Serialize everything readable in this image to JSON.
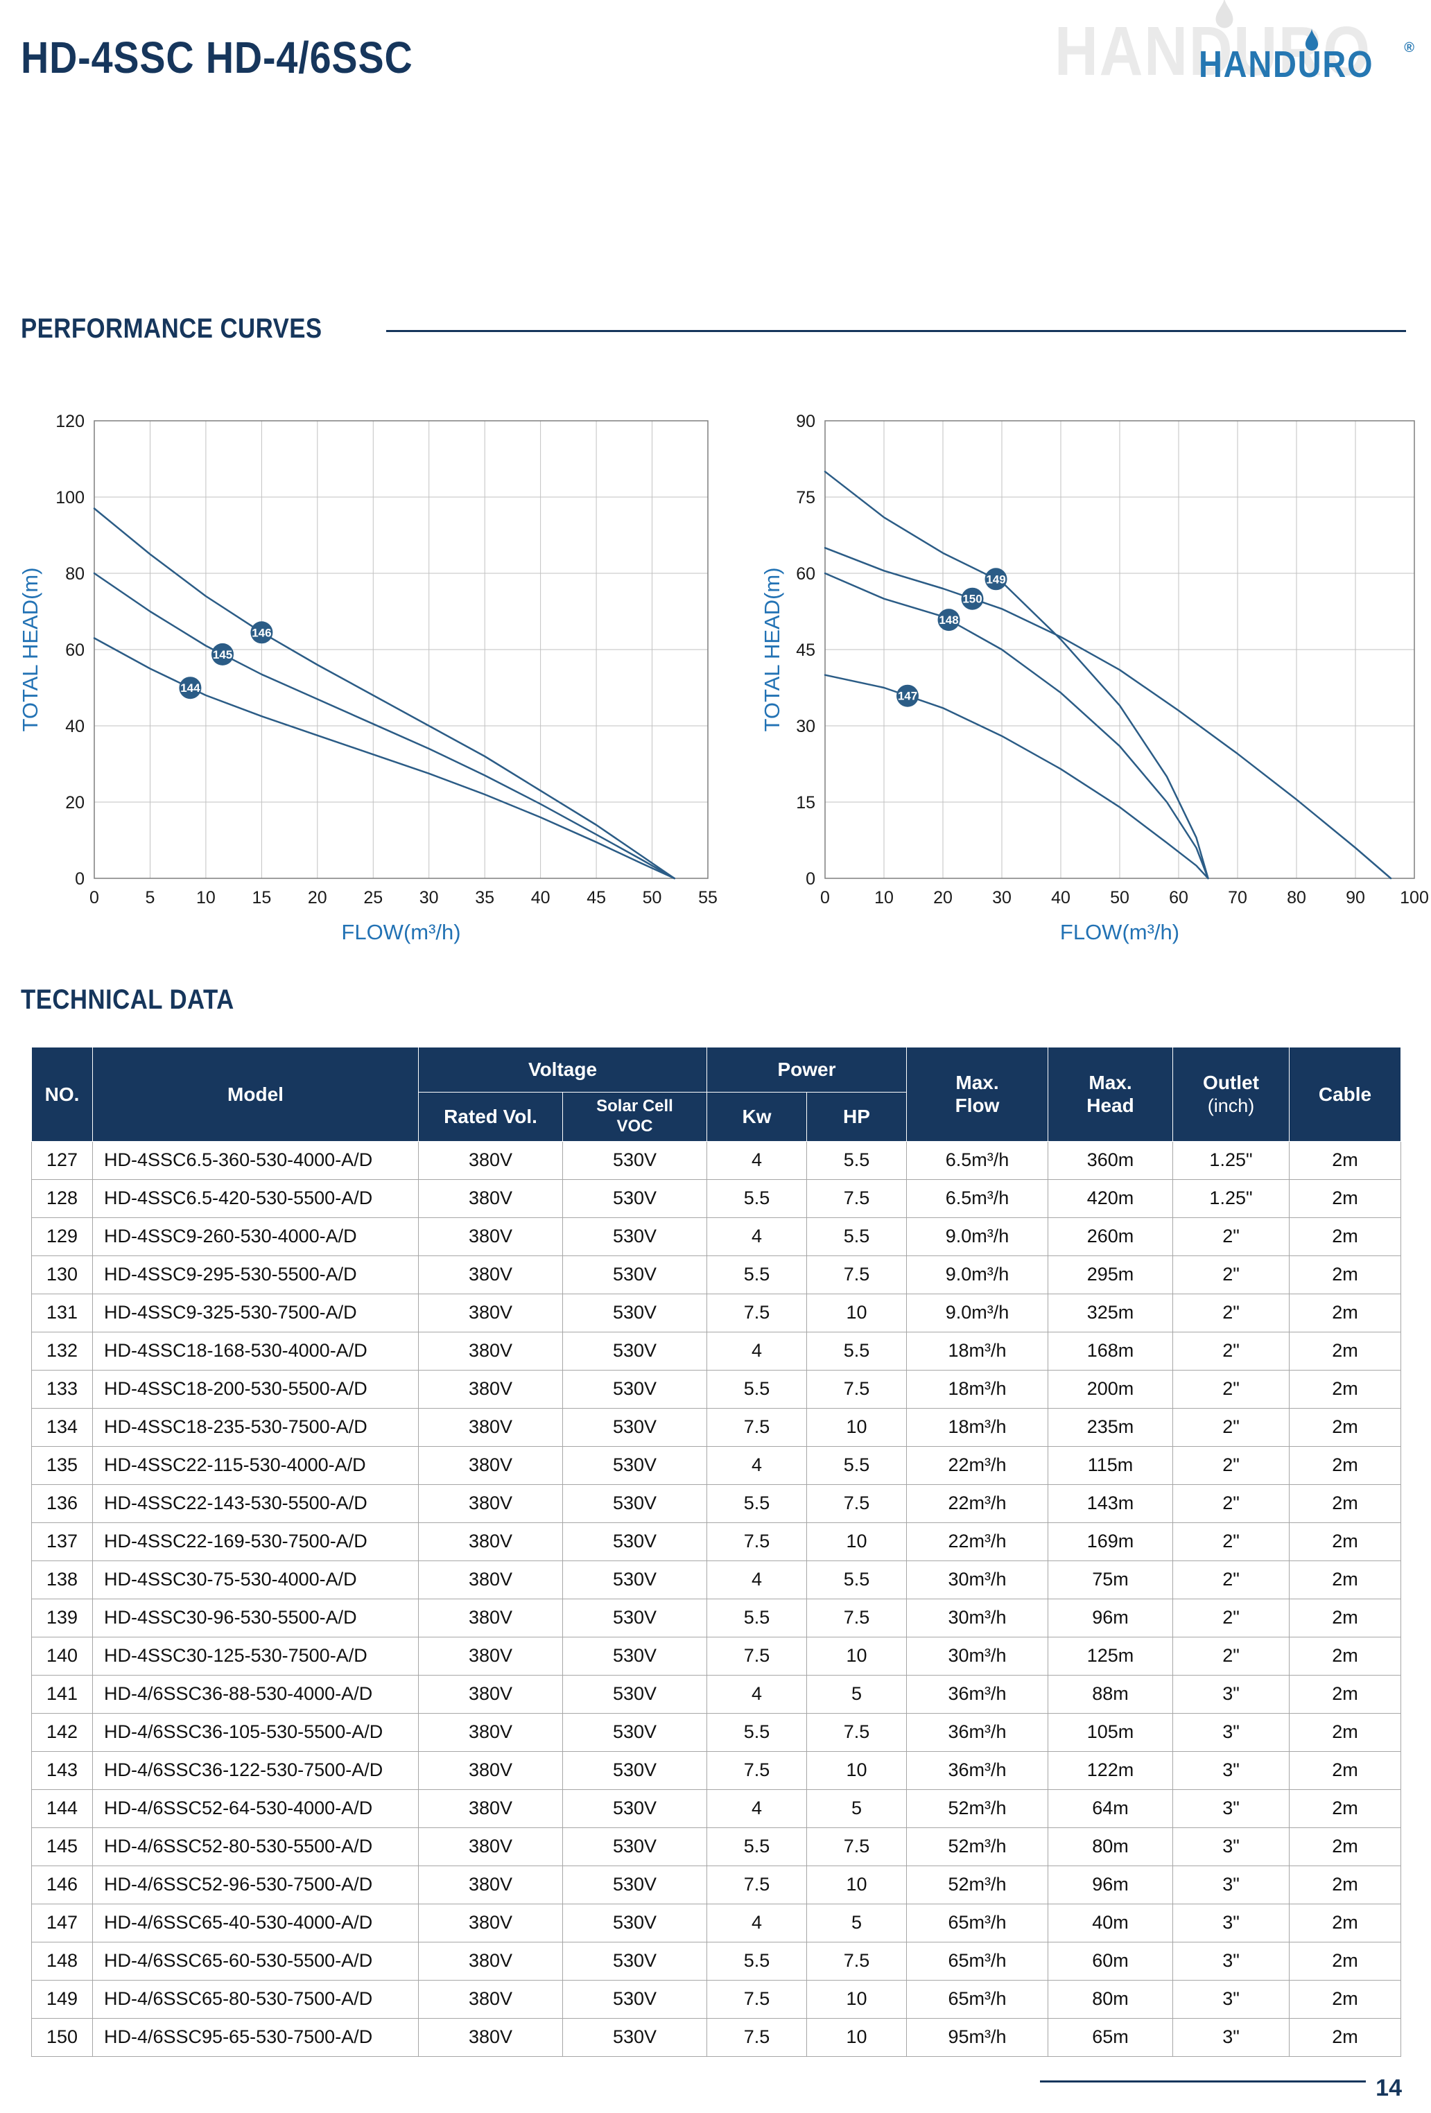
{
  "colors": {
    "navy": "#16365c",
    "blue_axis": "#2272b4",
    "logo_blue": "#2577b2",
    "curve": "#2b5c86",
    "header_bg": "#17375e",
    "grid": "#c2c2c2",
    "border": "#a6a6a6"
  },
  "header": {
    "title": "HD-4SSC HD-4/6SSC",
    "watermark_text": "HANDURO",
    "logo_text": "HANDURO",
    "logo_registered": "®"
  },
  "performance": {
    "section_title": "PERFORMANCE CURVES"
  },
  "technical": {
    "section_title": "TECHNICAL DATA"
  },
  "footer": {
    "page_number": "14"
  },
  "chart_data": [
    {
      "type": "line",
      "title": "",
      "xlabel": "FLOW(m³/h)",
      "ylabel": "TOTAL HEAD(m)",
      "xlim": [
        0,
        55
      ],
      "ylim": [
        0,
        120
      ],
      "xticks": [
        0,
        5,
        10,
        15,
        20,
        25,
        30,
        35,
        40,
        45,
        50,
        55
      ],
      "yticks": [
        0,
        20,
        40,
        60,
        80,
        100,
        120
      ],
      "grid": true,
      "legend": "none",
      "series": [
        {
          "name": "144",
          "label_x": 8.6,
          "points": [
            [
              0,
              63
            ],
            [
              5,
              55
            ],
            [
              10,
              48
            ],
            [
              15,
              42.5
            ],
            [
              20,
              37.5
            ],
            [
              25,
              32.5
            ],
            [
              30,
              27.5
            ],
            [
              35,
              22
            ],
            [
              40,
              16
            ],
            [
              45,
              9.5
            ],
            [
              49,
              4
            ],
            [
              52,
              0
            ]
          ]
        },
        {
          "name": "145",
          "label_x": 11.5,
          "points": [
            [
              0,
              80
            ],
            [
              5,
              70
            ],
            [
              10,
              61
            ],
            [
              15,
              53.5
            ],
            [
              20,
              47
            ],
            [
              25,
              40.5
            ],
            [
              30,
              34
            ],
            [
              35,
              27
            ],
            [
              40,
              19.5
            ],
            [
              45,
              11.5
            ],
            [
              49,
              5
            ],
            [
              52,
              0
            ]
          ]
        },
        {
          "name": "146",
          "label_x": 15,
          "points": [
            [
              0,
              97
            ],
            [
              5,
              85
            ],
            [
              10,
              74
            ],
            [
              15,
              64.5
            ],
            [
              20,
              56
            ],
            [
              25,
              48
            ],
            [
              30,
              40
            ],
            [
              35,
              32
            ],
            [
              40,
              23
            ],
            [
              45,
              14
            ],
            [
              49,
              6
            ],
            [
              52,
              0
            ]
          ]
        }
      ]
    },
    {
      "type": "line",
      "title": "",
      "xlabel": "FLOW(m³/h)",
      "ylabel": "TOTAL HEAD(m)",
      "xlim": [
        0,
        100
      ],
      "ylim": [
        0,
        90
      ],
      "xticks": [
        0,
        10,
        20,
        30,
        40,
        50,
        60,
        70,
        80,
        90,
        100
      ],
      "yticks": [
        0,
        15,
        30,
        45,
        60,
        75,
        90
      ],
      "grid": true,
      "legend": "none",
      "series": [
        {
          "name": "147",
          "label_x": 14,
          "points": [
            [
              0,
              40
            ],
            [
              10,
              37.5
            ],
            [
              20,
              33.5
            ],
            [
              30,
              28
            ],
            [
              40,
              21.5
            ],
            [
              50,
              14
            ],
            [
              58,
              7
            ],
            [
              63,
              2.5
            ],
            [
              65,
              0
            ]
          ]
        },
        {
          "name": "148",
          "label_x": 21,
          "points": [
            [
              0,
              60
            ],
            [
              10,
              55
            ],
            [
              20,
              51.5
            ],
            [
              30,
              45
            ],
            [
              40,
              36.5
            ],
            [
              50,
              26
            ],
            [
              58,
              15
            ],
            [
              63,
              6
            ],
            [
              65,
              0
            ]
          ]
        },
        {
          "name": "150",
          "label_x": 25,
          "points": [
            [
              0,
              65
            ],
            [
              10,
              60.5
            ],
            [
              20,
              57
            ],
            [
              30,
              53
            ],
            [
              40,
              47.5
            ],
            [
              50,
              41
            ],
            [
              60,
              33
            ],
            [
              70,
              24.5
            ],
            [
              80,
              15.5
            ],
            [
              90,
              6
            ],
            [
              96,
              0
            ]
          ]
        },
        {
          "name": "149",
          "label_x": 29,
          "points": [
            [
              0,
              80
            ],
            [
              10,
              71
            ],
            [
              20,
              64
            ],
            [
              30,
              58.3
            ],
            [
              40,
              47
            ],
            [
              50,
              34
            ],
            [
              58,
              20
            ],
            [
              63,
              8
            ],
            [
              65,
              0
            ]
          ]
        }
      ]
    }
  ],
  "table": {
    "header": {
      "no": "NO.",
      "model": "Model",
      "voltage": "Voltage",
      "power": "Power",
      "rated_vol": "Rated Vol.",
      "solar_cell_voc": "Solar Cell\nVOC",
      "kw": "Kw",
      "hp": "HP",
      "max_flow": "Max.\nFlow",
      "max_head": "Max.\nHead",
      "outlet_line1": "Outlet",
      "outlet_line2": "(inch)",
      "cable": "Cable"
    },
    "rows": [
      [
        "127",
        "HD-4SSC6.5-360-530-4000-A/D",
        "380V",
        "530V",
        "4",
        "5.5",
        "6.5m³/h",
        "360m",
        "1.25\"",
        "2m"
      ],
      [
        "128",
        "HD-4SSC6.5-420-530-5500-A/D",
        "380V",
        "530V",
        "5.5",
        "7.5",
        "6.5m³/h",
        "420m",
        "1.25\"",
        "2m"
      ],
      [
        "129",
        "HD-4SSC9-260-530-4000-A/D",
        "380V",
        "530V",
        "4",
        "5.5",
        "9.0m³/h",
        "260m",
        "2\"",
        "2m"
      ],
      [
        "130",
        "HD-4SSC9-295-530-5500-A/D",
        "380V",
        "530V",
        "5.5",
        "7.5",
        "9.0m³/h",
        "295m",
        "2\"",
        "2m"
      ],
      [
        "131",
        "HD-4SSC9-325-530-7500-A/D",
        "380V",
        "530V",
        "7.5",
        "10",
        "9.0m³/h",
        "325m",
        "2\"",
        "2m"
      ],
      [
        "132",
        "HD-4SSC18-168-530-4000-A/D",
        "380V",
        "530V",
        "4",
        "5.5",
        "18m³/h",
        "168m",
        "2\"",
        "2m"
      ],
      [
        "133",
        "HD-4SSC18-200-530-5500-A/D",
        "380V",
        "530V",
        "5.5",
        "7.5",
        "18m³/h",
        "200m",
        "2\"",
        "2m"
      ],
      [
        "134",
        "HD-4SSC18-235-530-7500-A/D",
        "380V",
        "530V",
        "7.5",
        "10",
        "18m³/h",
        "235m",
        "2\"",
        "2m"
      ],
      [
        "135",
        "HD-4SSC22-115-530-4000-A/D",
        "380V",
        "530V",
        "4",
        "5.5",
        "22m³/h",
        "115m",
        "2\"",
        "2m"
      ],
      [
        "136",
        "HD-4SSC22-143-530-5500-A/D",
        "380V",
        "530V",
        "5.5",
        "7.5",
        "22m³/h",
        "143m",
        "2\"",
        "2m"
      ],
      [
        "137",
        "HD-4SSC22-169-530-7500-A/D",
        "380V",
        "530V",
        "7.5",
        "10",
        "22m³/h",
        "169m",
        "2\"",
        "2m"
      ],
      [
        "138",
        "HD-4SSC30-75-530-4000-A/D",
        "380V",
        "530V",
        "4",
        "5.5",
        "30m³/h",
        "75m",
        "2\"",
        "2m"
      ],
      [
        "139",
        "HD-4SSC30-96-530-5500-A/D",
        "380V",
        "530V",
        "5.5",
        "7.5",
        "30m³/h",
        "96m",
        "2\"",
        "2m"
      ],
      [
        "140",
        "HD-4SSC30-125-530-7500-A/D",
        "380V",
        "530V",
        "7.5",
        "10",
        "30m³/h",
        "125m",
        "2\"",
        "2m"
      ],
      [
        "141",
        "HD-4/6SSC36-88-530-4000-A/D",
        "380V",
        "530V",
        "4",
        "5",
        "36m³/h",
        "88m",
        "3\"",
        "2m"
      ],
      [
        "142",
        "HD-4/6SSC36-105-530-5500-A/D",
        "380V",
        "530V",
        "5.5",
        "7.5",
        "36m³/h",
        "105m",
        "3\"",
        "2m"
      ],
      [
        "143",
        "HD-4/6SSC36-122-530-7500-A/D",
        "380V",
        "530V",
        "7.5",
        "10",
        "36m³/h",
        "122m",
        "3\"",
        "2m"
      ],
      [
        "144",
        "HD-4/6SSC52-64-530-4000-A/D",
        "380V",
        "530V",
        "4",
        "5",
        "52m³/h",
        "64m",
        "3\"",
        "2m"
      ],
      [
        "145",
        "HD-4/6SSC52-80-530-5500-A/D",
        "380V",
        "530V",
        "5.5",
        "7.5",
        "52m³/h",
        "80m",
        "3\"",
        "2m"
      ],
      [
        "146",
        "HD-4/6SSC52-96-530-7500-A/D",
        "380V",
        "530V",
        "7.5",
        "10",
        "52m³/h",
        "96m",
        "3\"",
        "2m"
      ],
      [
        "147",
        "HD-4/6SSC65-40-530-4000-A/D",
        "380V",
        "530V",
        "4",
        "5",
        "65m³/h",
        "40m",
        "3\"",
        "2m"
      ],
      [
        "148",
        "HD-4/6SSC65-60-530-5500-A/D",
        "380V",
        "530V",
        "5.5",
        "7.5",
        "65m³/h",
        "60m",
        "3\"",
        "2m"
      ],
      [
        "149",
        "HD-4/6SSC65-80-530-7500-A/D",
        "380V",
        "530V",
        "7.5",
        "10",
        "65m³/h",
        "80m",
        "3\"",
        "2m"
      ],
      [
        "150",
        "HD-4/6SSC95-65-530-7500-A/D",
        "380V",
        "530V",
        "7.5",
        "10",
        "95m³/h",
        "65m",
        "3\"",
        "2m"
      ]
    ]
  }
}
